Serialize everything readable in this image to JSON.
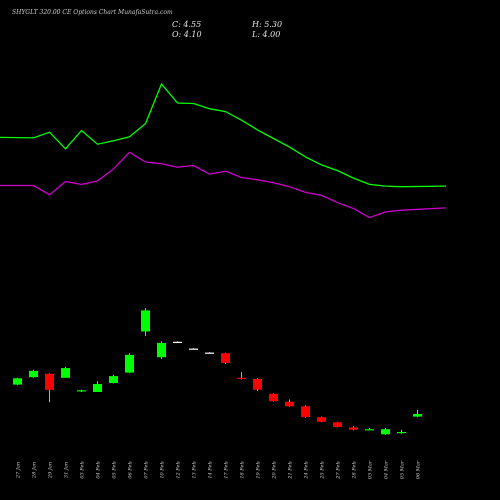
{
  "title": "SHYGLT 320.00 CE Options  Chart MunafaSutra.com",
  "ohlc": {
    "close_label": "C: 4.55",
    "high_label": "H: 5.30",
    "open_label": "O: 4.10",
    "low_label": "L: 4.00"
  },
  "colors": {
    "background": "#000000",
    "up": "#00ff00",
    "down": "#ff0000",
    "doji": "#ffffff",
    "upper_line": "#00ff00",
    "lower_line": "#cc00cc"
  },
  "chart_data": {
    "type": "candlestick",
    "y_range": [
      0,
      31
    ],
    "dates": [
      "27 Jan",
      "28 Jan",
      "29 Jan",
      "31 Jan",
      "03 Feb",
      "04 Feb",
      "05 Feb",
      "06 Feb",
      "07 Feb",
      "10 Feb",
      "12 Feb",
      "13 Feb",
      "14 Feb",
      "17 Feb",
      "18 Feb",
      "19 Feb",
      "20 Feb",
      "21 Feb",
      "24 Feb",
      "25 Feb",
      "27 Feb",
      "28 Feb",
      "03 Mar",
      "04 Mar",
      "05 Mar",
      "06 Mar"
    ],
    "x_tick_labels": [
      "27 Jan",
      "28 Jan",
      "29 Jan",
      "31 Jan",
      "03 Feb",
      "04 Feb",
      "05 Feb",
      "06 Feb",
      "07 Feb",
      "10 Feb",
      "12 Feb",
      "13 Feb",
      "14 Feb",
      "17 Feb",
      "18 Feb",
      "19 Feb",
      "20 Feb",
      "21 Feb",
      "24 Feb",
      "25 Feb",
      "27 Feb",
      "28 Feb",
      "03 Mar",
      "04 Mar",
      "05 Mar",
      "06 Mar"
    ],
    "candles": [
      {
        "date": "27 Jan",
        "open": 9.7,
        "high": 10.9,
        "low": 9.6,
        "close": 10.8
      },
      {
        "date": "28 Jan",
        "open": 11.0,
        "high": 12.3,
        "low": 10.9,
        "close": 12.1
      },
      {
        "date": "29 Jan",
        "open": 11.6,
        "high": 11.7,
        "low": 6.6,
        "close": 8.8
      },
      {
        "date": "31 Jan",
        "open": 10.9,
        "high": 12.8,
        "low": 10.9,
        "close": 12.6
      },
      {
        "date": "03 Feb",
        "open": 8.6,
        "high": 8.8,
        "low": 8.4,
        "close": 8.7
      },
      {
        "date": "04 Feb",
        "open": 8.4,
        "high": 10.3,
        "low": 8.4,
        "close": 9.8
      },
      {
        "date": "05 Feb",
        "open": 10.0,
        "high": 11.4,
        "low": 9.9,
        "close": 11.2
      },
      {
        "date": "06 Feb",
        "open": 11.8,
        "high": 15.2,
        "low": 11.7,
        "close": 14.9
      },
      {
        "date": "07 Feb",
        "open": 19.0,
        "high": 23.1,
        "low": 18.2,
        "close": 22.7
      },
      {
        "date": "10 Feb",
        "open": 14.5,
        "high": 17.3,
        "low": 14.2,
        "close": 17.0
      },
      {
        "date": "12 Feb",
        "open": 17.2,
        "high": 17.3,
        "low": 17.1,
        "close": 17.2
      },
      {
        "date": "13 Feb",
        "open": 16.0,
        "high": 16.1,
        "low": 15.9,
        "close": 16.0
      },
      {
        "date": "14 Feb",
        "open": 15.3,
        "high": 15.4,
        "low": 15.2,
        "close": 15.3
      },
      {
        "date": "17 Feb",
        "open": 15.2,
        "high": 15.3,
        "low": 13.3,
        "close": 13.5
      },
      {
        "date": "18 Feb",
        "open": 10.9,
        "high": 11.9,
        "low": 10.6,
        "close": 10.7
      },
      {
        "date": "19 Feb",
        "open": 10.7,
        "high": 10.8,
        "low": 8.6,
        "close": 8.8
      },
      {
        "date": "20 Feb",
        "open": 8.1,
        "high": 8.2,
        "low": 6.7,
        "close": 6.8
      },
      {
        "date": "21 Feb",
        "open": 6.7,
        "high": 7.1,
        "low": 5.8,
        "close": 5.9
      },
      {
        "date": "24 Feb",
        "open": 5.9,
        "high": 6.1,
        "low": 3.9,
        "close": 4.0
      },
      {
        "date": "25 Feb",
        "open": 4.0,
        "high": 4.1,
        "low": 3.1,
        "close": 3.2
      },
      {
        "date": "27 Feb",
        "open": 3.1,
        "high": 3.2,
        "low": 2.2,
        "close": 2.3
      },
      {
        "date": "28 Feb",
        "open": 2.2,
        "high": 2.4,
        "low": 1.7,
        "close": 1.8
      },
      {
        "date": "03 Mar",
        "open": 1.8,
        "high": 2.1,
        "low": 1.7,
        "close": 1.9
      },
      {
        "date": "04 Mar",
        "open": 1.0,
        "high": 2.1,
        "low": 0.9,
        "close": 1.9
      },
      {
        "date": "05 Mar",
        "open": 1.2,
        "high": 1.8,
        "low": 1.1,
        "close": 1.4
      },
      {
        "date": "06 Mar",
        "open": 4.1,
        "high": 5.3,
        "low": 4.0,
        "close": 4.55
      }
    ],
    "bands": [
      {
        "name": "",
        "color": "#00ff00",
        "values": [
          48.6,
          48.5,
          49.5,
          46.6,
          49.8,
          47.4,
          48.0,
          48.7,
          51.0,
          57.9,
          54.6,
          54.5,
          53.6,
          53.1,
          51.6,
          49.9,
          48.4,
          46.9,
          45.2,
          43.8,
          42.8,
          41.5,
          40.4,
          40.1,
          40.0,
          40.1
        ]
      },
      {
        "name": "",
        "color": "#cc00cc",
        "values": [
          40.2,
          40.2,
          38.6,
          40.9,
          40.4,
          41.0,
          43.1,
          46.0,
          44.3,
          44.0,
          43.4,
          43.7,
          42.2,
          42.7,
          41.6,
          41.2,
          40.7,
          40.0,
          39.0,
          38.5,
          37.2,
          36.2,
          34.6,
          35.6,
          35.9,
          36.3
        ]
      }
    ]
  }
}
